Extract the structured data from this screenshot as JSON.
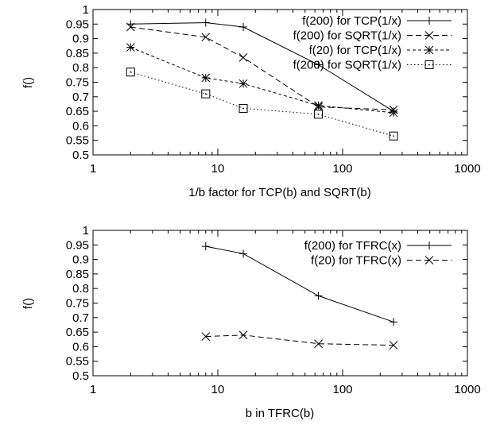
{
  "chart_data": [
    {
      "type": "line",
      "xscale": "log",
      "xlabel": "1/b factor for TCP(b) and SQRT(b)",
      "ylabel": "f()",
      "xlim": [
        1,
        1000
      ],
      "ylim": [
        0.5,
        1
      ],
      "x_ticks": [
        1,
        10,
        100,
        1000
      ],
      "x_tick_labels": [
        "1",
        "10",
        "100",
        "1000"
      ],
      "y_ticks": [
        0.5,
        0.55,
        0.6,
        0.65,
        0.7,
        0.75,
        0.8,
        0.85,
        0.9,
        0.95,
        1
      ],
      "y_tick_labels": [
        "0.5",
        "0.55",
        "0.6",
        "0.65",
        "0.7",
        "0.75",
        "0.8",
        "0.85",
        "0.9",
        "0.95",
        "1"
      ],
      "legend_position": "top-right",
      "series": [
        {
          "name": "f(200) for TCP(1/x)",
          "marker": "plus",
          "dash": "solid",
          "x": [
            2,
            8,
            16,
            64,
            256
          ],
          "y": [
            0.95,
            0.955,
            0.94,
            0.81,
            0.65
          ]
        },
        {
          "name": "f(200) for SQRT(1/x)",
          "marker": "cross",
          "dash": "dashed",
          "x": [
            2,
            8,
            16,
            64,
            256
          ],
          "y": [
            0.94,
            0.905,
            0.835,
            0.665,
            0.655
          ]
        },
        {
          "name": "f(20) for TCP(1/x)",
          "marker": "star",
          "dash": "short-dashed",
          "x": [
            2,
            8,
            16,
            64,
            256
          ],
          "y": [
            0.87,
            0.765,
            0.745,
            0.67,
            0.645
          ]
        },
        {
          "name": "f(200) for SQRT(1/x)",
          "marker": "square-dot",
          "dash": "dotted",
          "x": [
            2,
            8,
            16,
            64,
            256
          ],
          "y": [
            0.785,
            0.71,
            0.66,
            0.64,
            0.565
          ]
        }
      ]
    },
    {
      "type": "line",
      "xscale": "log",
      "xlabel": "b in TFRC(b)",
      "ylabel": "f()",
      "xlim": [
        1,
        1000
      ],
      "ylim": [
        0.5,
        1
      ],
      "x_ticks": [
        1,
        10,
        100,
        1000
      ],
      "x_tick_labels": [
        "1",
        "10",
        "100",
        "1000"
      ],
      "y_ticks": [
        0.5,
        0.55,
        0.6,
        0.65,
        0.7,
        0.75,
        0.8,
        0.85,
        0.9,
        0.95,
        1
      ],
      "y_tick_labels": [
        "0.5",
        "0.55",
        "0.6",
        "0.65",
        "0.7",
        "0.75",
        "0.8",
        "0.85",
        "0.9",
        "0.95",
        "1"
      ],
      "legend_position": "top-right",
      "series": [
        {
          "name": "f(200) for TFRC(x)",
          "marker": "plus",
          "dash": "solid",
          "x": [
            8,
            16,
            64,
            256
          ],
          "y": [
            0.945,
            0.92,
            0.775,
            0.685
          ]
        },
        {
          "name": "f(20) for TFRC(x)",
          "marker": "cross",
          "dash": "dashed",
          "x": [
            8,
            16,
            64,
            256
          ],
          "y": [
            0.635,
            0.64,
            0.61,
            0.605
          ]
        }
      ]
    }
  ]
}
